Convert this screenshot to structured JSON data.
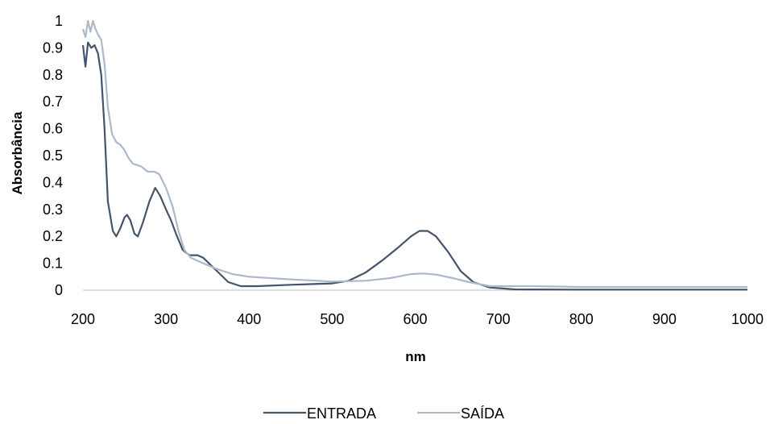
{
  "chart_data": {
    "type": "line",
    "xlabel": "nm",
    "ylabel": "Absorbância",
    "xlim": [
      200,
      1000
    ],
    "ylim": [
      0,
      1
    ],
    "x_ticks": [
      200,
      300,
      400,
      500,
      600,
      700,
      800,
      900,
      1000
    ],
    "y_ticks": [
      0,
      0.1,
      0.2,
      0.3,
      0.4,
      0.5,
      0.6,
      0.7,
      0.8,
      0.9,
      1
    ],
    "x_tick_labels": [
      "200",
      "300",
      "400",
      "500",
      "600",
      "700",
      "800",
      "900",
      "1000"
    ],
    "y_tick_labels": [
      "0",
      "0.1",
      "0.2",
      "0.3",
      "0.4",
      "0.5",
      "0.6",
      "0.7",
      "0.8",
      "0.9",
      "1"
    ],
    "grid": false,
    "legend_position": "bottom",
    "series": [
      {
        "name": "ENTRADA",
        "color": "#44546a",
        "points": [
          [
            200,
            0.91
          ],
          [
            203,
            0.83
          ],
          [
            206,
            0.92
          ],
          [
            210,
            0.9
          ],
          [
            214,
            0.91
          ],
          [
            218,
            0.88
          ],
          [
            222,
            0.8
          ],
          [
            226,
            0.6
          ],
          [
            230,
            0.33
          ],
          [
            236,
            0.22
          ],
          [
            240,
            0.2
          ],
          [
            245,
            0.23
          ],
          [
            250,
            0.27
          ],
          [
            253,
            0.28
          ],
          [
            257,
            0.26
          ],
          [
            262,
            0.21
          ],
          [
            266,
            0.2
          ],
          [
            272,
            0.25
          ],
          [
            280,
            0.33
          ],
          [
            287,
            0.38
          ],
          [
            293,
            0.35
          ],
          [
            300,
            0.3
          ],
          [
            306,
            0.26
          ],
          [
            312,
            0.21
          ],
          [
            320,
            0.15
          ],
          [
            328,
            0.13
          ],
          [
            338,
            0.13
          ],
          [
            345,
            0.12
          ],
          [
            355,
            0.09
          ],
          [
            365,
            0.06
          ],
          [
            375,
            0.03
          ],
          [
            390,
            0.015
          ],
          [
            410,
            0.015
          ],
          [
            450,
            0.02
          ],
          [
            500,
            0.025
          ],
          [
            520,
            0.035
          ],
          [
            540,
            0.065
          ],
          [
            560,
            0.11
          ],
          [
            580,
            0.16
          ],
          [
            595,
            0.2
          ],
          [
            605,
            0.22
          ],
          [
            615,
            0.22
          ],
          [
            625,
            0.2
          ],
          [
            640,
            0.14
          ],
          [
            655,
            0.07
          ],
          [
            670,
            0.03
          ],
          [
            690,
            0.01
          ],
          [
            720,
            0.003
          ],
          [
            800,
            0.002
          ],
          [
            900,
            0.002
          ],
          [
            1000,
            0.002
          ]
        ]
      },
      {
        "name": "SAÍDA",
        "color": "#adb9ca",
        "points": [
          [
            200,
            0.97
          ],
          [
            203,
            0.94
          ],
          [
            206,
            1.0
          ],
          [
            209,
            0.96
          ],
          [
            212,
            1.0
          ],
          [
            215,
            0.97
          ],
          [
            218,
            0.95
          ],
          [
            222,
            0.93
          ],
          [
            226,
            0.84
          ],
          [
            230,
            0.68
          ],
          [
            235,
            0.58
          ],
          [
            240,
            0.55
          ],
          [
            245,
            0.54
          ],
          [
            250,
            0.52
          ],
          [
            255,
            0.49
          ],
          [
            260,
            0.47
          ],
          [
            270,
            0.46
          ],
          [
            278,
            0.44
          ],
          [
            286,
            0.44
          ],
          [
            292,
            0.43
          ],
          [
            300,
            0.38
          ],
          [
            308,
            0.31
          ],
          [
            315,
            0.22
          ],
          [
            322,
            0.15
          ],
          [
            330,
            0.12
          ],
          [
            345,
            0.1
          ],
          [
            360,
            0.08
          ],
          [
            380,
            0.06
          ],
          [
            400,
            0.05
          ],
          [
            450,
            0.04
          ],
          [
            500,
            0.032
          ],
          [
            540,
            0.035
          ],
          [
            570,
            0.045
          ],
          [
            595,
            0.06
          ],
          [
            610,
            0.062
          ],
          [
            625,
            0.058
          ],
          [
            645,
            0.045
          ],
          [
            665,
            0.03
          ],
          [
            690,
            0.015
          ],
          [
            740,
            0.015
          ],
          [
            800,
            0.012
          ],
          [
            900,
            0.012
          ],
          [
            1000,
            0.012
          ]
        ]
      }
    ]
  }
}
